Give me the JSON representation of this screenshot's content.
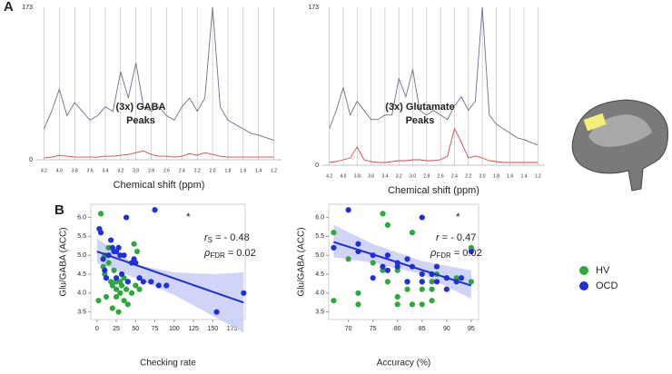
{
  "panel_labels": [
    "A",
    "B"
  ],
  "chart_data": [
    {
      "type": "line",
      "x_label": "Chemical shift (ppm)",
      "annotation": [
        "(3x) GABA",
        "Peaks"
      ],
      "x": [
        4.2,
        4.1,
        4.0,
        3.9,
        3.8,
        3.7,
        3.6,
        3.5,
        3.4,
        3.3,
        3.2,
        3.1,
        3.0,
        2.9,
        2.8,
        2.7,
        2.6,
        2.5,
        2.4,
        2.3,
        2.2,
        2.1,
        2.0,
        1.9,
        1.8,
        1.7,
        1.6,
        1.5,
        1.4,
        1.3,
        1.2
      ],
      "series": [
        {
          "color": "#6e6e8a",
          "values": [
            35,
            55,
            80,
            50,
            65,
            55,
            45,
            50,
            60,
            55,
            100,
            70,
            110,
            60,
            55,
            60,
            50,
            45,
            60,
            70,
            55,
            70,
            173,
            60,
            45,
            40,
            35,
            30,
            28,
            25,
            22
          ]
        },
        {
          "color": "#d04a4a",
          "values": [
            2,
            3,
            5,
            4,
            3,
            3,
            3,
            3,
            4,
            4,
            5,
            6,
            8,
            10,
            6,
            4,
            4,
            3,
            4,
            7,
            5,
            8,
            6,
            4,
            3,
            3,
            3,
            3,
            3,
            3,
            3
          ]
        }
      ],
      "xlim": [
        4.3,
        1.1
      ],
      "ylim": [
        0,
        173
      ],
      "yticks": [
        0,
        173
      ],
      "xticks": [
        4.2,
        {
          "value": 4,
          "label": "4.0"
        },
        3.8,
        3.6,
        3.4,
        3.2,
        {
          "value": 3,
          "label": "3.0"
        },
        2.8,
        2.6,
        2.4,
        2.2,
        {
          "value": 2,
          "label": "2.0"
        },
        1.8,
        1.6,
        1.4,
        1.2
      ],
      "grid": true
    },
    {
      "type": "line",
      "x_label": "Chemical shift (ppm)",
      "annotation": [
        "(3x) Glutamate",
        "Peaks"
      ],
      "x": [
        4.2,
        4.1,
        4.0,
        3.9,
        3.8,
        3.7,
        3.6,
        3.5,
        3.4,
        3.3,
        3.2,
        3.1,
        3.0,
        2.9,
        2.8,
        2.7,
        2.6,
        2.5,
        2.4,
        2.3,
        2.2,
        2.1,
        2.0,
        1.9,
        1.8,
        1.7,
        1.6,
        1.5,
        1.4,
        1.3,
        1.2
      ],
      "series": [
        {
          "color": "#6e6e8a",
          "values": [
            40,
            60,
            85,
            55,
            70,
            60,
            50,
            50,
            55,
            55,
            95,
            75,
            105,
            60,
            55,
            60,
            55,
            50,
            65,
            75,
            60,
            70,
            173,
            55,
            45,
            40,
            35,
            30,
            28,
            25,
            22
          ]
        },
        {
          "color": "#d04a4a",
          "values": [
            3,
            4,
            6,
            8,
            20,
            6,
            4,
            3,
            3,
            4,
            5,
            5,
            6,
            6,
            5,
            5,
            6,
            10,
            40,
            25,
            8,
            10,
            8,
            5,
            4,
            3,
            3,
            3,
            3,
            3,
            3
          ]
        }
      ],
      "xlim": [
        4.3,
        1.1
      ],
      "ylim": [
        0,
        173
      ],
      "yticks": [
        0,
        173
      ],
      "xticks": [
        4.2,
        {
          "value": 4,
          "label": "4.0"
        },
        3.8,
        3.6,
        3.4,
        3.2,
        {
          "value": 3,
          "label": "3.0"
        },
        2.8,
        2.6,
        2.4,
        2.2,
        {
          "value": 2,
          "label": "2.0"
        },
        1.8,
        1.6,
        1.4,
        1.2
      ],
      "grid": true
    },
    {
      "type": "scatter",
      "x_label": "Checking rate",
      "y_label": "Glu/GABA (ACC)",
      "annotation": "*",
      "stats": [
        {
          "symbol": "r",
          "sub": "S",
          "text": " = - 0.48"
        },
        {
          "symbol": "ρ",
          "sub": "FDR",
          "text": " = 0.02"
        }
      ],
      "series": [
        {
          "name": "HV",
          "color": "#2ea83a",
          "x": [
            2,
            5,
            8,
            10,
            12,
            12,
            15,
            18,
            20,
            20,
            22,
            25,
            25,
            28,
            30,
            30,
            32,
            35,
            38,
            40,
            40,
            45,
            48,
            50,
            52,
            55,
            10,
            15,
            25,
            35
          ],
          "values": [
            3.8,
            6.1,
            4.7,
            5.0,
            4.4,
            3.9,
            5.2,
            4.3,
            4.2,
            3.6,
            4.6,
            4.3,
            3.9,
            3.5,
            4.3,
            4.0,
            4.2,
            3.8,
            4.1,
            4.3,
            3.7,
            4.0,
            5.3,
            4.2,
            5.1,
            4.1,
            4.5,
            4.8,
            4.1,
            4.4
          ]
        },
        {
          "name": "OCD",
          "color": "#1f2fe0",
          "x": [
            3,
            5,
            8,
            12,
            15,
            18,
            20,
            22,
            25,
            28,
            30,
            32,
            35,
            38,
            40,
            45,
            48,
            50,
            55,
            60,
            70,
            75,
            80,
            90,
            155,
            190,
            10,
            25
          ],
          "values": [
            5.7,
            5.6,
            4.9,
            4.4,
            5.0,
            5.4,
            5.2,
            5.1,
            5.1,
            5.2,
            5.0,
            4.5,
            5.0,
            6.0,
            4.3,
            4.8,
            4.9,
            4.8,
            4.4,
            4.3,
            4.3,
            6.2,
            4.2,
            4.2,
            3.5,
            4.0,
            4.6,
            4.4
          ]
        }
      ],
      "fit": {
        "color": "#1f2fd0",
        "x": [
          0,
          190
        ],
        "values": [
          5.1,
          3.75
        ]
      },
      "band": {
        "color": "#c8ccf5",
        "x": [
          0,
          50,
          100,
          150,
          190
        ],
        "lower": [
          4.8,
          4.4,
          3.95,
          3.4,
          2.95
        ],
        "upper": [
          5.45,
          4.75,
          4.55,
          4.5,
          4.55
        ]
      },
      "xlim": [
        -8,
        192
      ],
      "xticks": [
        0,
        25,
        50,
        75,
        100,
        125,
        150,
        175
      ],
      "ylim": [
        3.3,
        6.35
      ],
      "yticks": [
        3.5,
        {
          "value": 4,
          "label": "4.0"
        },
        4.5,
        {
          "value": 5,
          "label": "5.0"
        },
        5.5,
        {
          "value": 6,
          "label": "6.0"
        }
      ]
    },
    {
      "type": "scatter",
      "x_label": "Accuracy (%)",
      "y_label": "Glu/GABA (ACC)",
      "annotation": "*",
      "stats": [
        {
          "symbol": "r",
          "text": " = - 0.47"
        },
        {
          "symbol": "ρ",
          "sub": "FDR",
          "text": " = 0.02"
        }
      ],
      "series": [
        {
          "name": "HV",
          "color": "#2ea83a",
          "x": [
            67,
            67,
            70,
            72,
            72,
            75,
            77,
            77,
            78,
            80,
            80,
            80,
            82,
            82,
            83,
            85,
            85,
            85,
            87,
            87,
            88,
            90,
            92,
            95,
            95,
            78,
            83,
            87
          ],
          "values": [
            3.8,
            5.6,
            4.9,
            4.0,
            3.7,
            4.8,
            4.6,
            6.1,
            4.3,
            4.6,
            3.9,
            3.7,
            4.3,
            4.1,
            3.7,
            4.3,
            4.1,
            3.7,
            4.3,
            3.8,
            4.5,
            4.4,
            4.4,
            4.3,
            5.2,
            5.8,
            5.6,
            4.1
          ]
        },
        {
          "name": "OCD",
          "color": "#1f2fe0",
          "x": [
            67,
            70,
            72,
            75,
            75,
            77,
            78,
            80,
            80,
            82,
            82,
            83,
            85,
            85,
            85,
            87,
            88,
            88,
            90,
            90,
            92,
            93,
            95,
            72,
            78
          ],
          "values": [
            5.2,
            6.2,
            5.3,
            5.0,
            4.4,
            4.7,
            5.0,
            4.7,
            4.8,
            4.9,
            4.3,
            4.7,
            4.5,
            6.0,
            4.3,
            4.5,
            4.7,
            4.3,
            4.4,
            4.1,
            4.3,
            4.4,
            5.1,
            5.1,
            4.6
          ]
        }
      ],
      "fit": {
        "color": "#1f2fd0",
        "x": [
          67,
          95
        ],
        "values": [
          5.35,
          4.2
        ]
      },
      "band": {
        "color": "#c8ccf5",
        "x": [
          67,
          75,
          85,
          95
        ],
        "lower": [
          4.95,
          4.8,
          4.5,
          3.85
        ],
        "upper": [
          5.8,
          5.3,
          4.85,
          4.6
        ]
      },
      "xlim": [
        66,
        96.5
      ],
      "xticks": [
        70,
        75,
        80,
        85,
        90,
        95
      ],
      "ylim": [
        3.3,
        6.35
      ],
      "yticks": [
        3.5,
        {
          "value": 4,
          "label": "4.0"
        },
        4.5,
        {
          "value": 5,
          "label": "5.0"
        },
        5.5,
        {
          "value": 6,
          "label": "6.0"
        }
      ]
    }
  ]
}
